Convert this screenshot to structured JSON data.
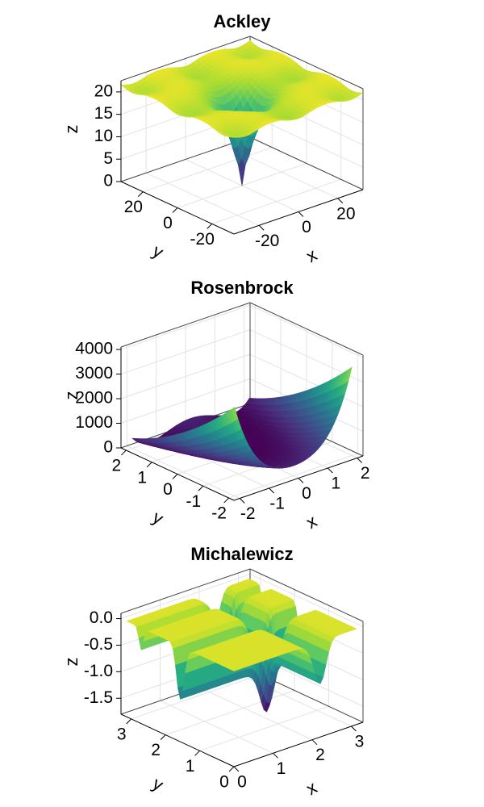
{
  "chart_data": [
    {
      "type": "surface3d",
      "title": "Ackley",
      "xlabel": "x",
      "ylabel": "y",
      "zlabel": "z",
      "xlim": [
        -32.768,
        32.768
      ],
      "ylim": [
        -32.768,
        32.768
      ],
      "zlim": [
        0,
        22.5
      ],
      "xticks": [
        -20,
        0,
        20
      ],
      "yticks": [
        -20,
        0,
        20
      ],
      "zticks": [
        0,
        5,
        10,
        15,
        20
      ]
    },
    {
      "type": "surface3d",
      "title": "Rosenbrock",
      "xlabel": "x",
      "ylabel": "y",
      "zlabel": "z",
      "xlim": [
        -2.2,
        2.2
      ],
      "ylim": [
        -2.2,
        2.2
      ],
      "zlim": [
        0,
        4100
      ],
      "xticks": [
        -2,
        -1,
        0,
        1,
        2
      ],
      "yticks": [
        -2,
        -1,
        0,
        1,
        2
      ],
      "zticks": [
        0,
        1000,
        2000,
        3000,
        4000
      ]
    },
    {
      "type": "surface3d",
      "title": "Michalewicz",
      "xlabel": "x",
      "ylabel": "y",
      "zlabel": "z",
      "xlim": [
        0,
        3.3
      ],
      "ylim": [
        0,
        3.3
      ],
      "zlim": [
        -1.8,
        0.1
      ],
      "xticks": [
        0,
        1,
        2,
        3
      ],
      "yticks": [
        0,
        1,
        2,
        3
      ],
      "zticks": [
        {
          "value": -1.5,
          "label": "-1.5"
        },
        {
          "value": -1.0,
          "label": "-1.0"
        },
        {
          "value": -0.5,
          "label": "-0.5"
        },
        {
          "value": 0,
          "label": "0.0"
        }
      ]
    }
  ]
}
